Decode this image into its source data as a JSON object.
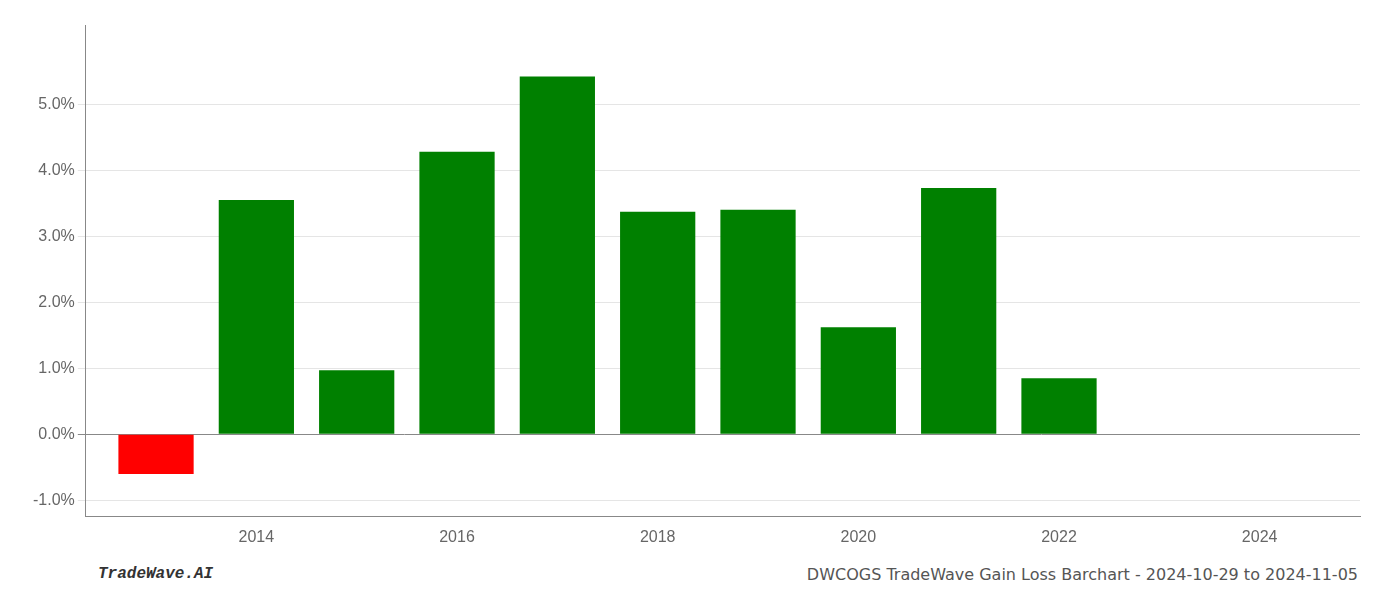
{
  "chart_data": {
    "type": "bar",
    "x": [
      2013,
      2014,
      2015,
      2016,
      2017,
      2018,
      2019,
      2020,
      2021,
      2022
    ],
    "values": [
      -0.6,
      3.55,
      0.97,
      4.28,
      5.42,
      3.37,
      3.4,
      1.62,
      3.73,
      0.85
    ],
    "colors": [
      "#ff0000",
      "#008000",
      "#008000",
      "#008000",
      "#008000",
      "#008000",
      "#008000",
      "#008000",
      "#008000",
      "#008000"
    ],
    "xlim": [
      2012.3,
      2025.0
    ],
    "xticks": [
      2014,
      2016,
      2018,
      2020,
      2022,
      2024
    ],
    "ylim": [
      -1.25,
      6.2
    ],
    "yticks": [
      {
        "value": -1.0,
        "label": "-1.0%"
      },
      {
        "value": 0.0,
        "label": "0.0%"
      },
      {
        "value": 1.0,
        "label": "1.0%"
      },
      {
        "value": 2.0,
        "label": "2.0%"
      },
      {
        "value": 3.0,
        "label": "3.0%"
      },
      {
        "value": 4.0,
        "label": "4.0%"
      },
      {
        "value": 5.0,
        "label": "5.0%"
      }
    ],
    "grid": true,
    "annotations": [
      "TradeWave.AI",
      "DWCOGS TradeWave Gain Loss Barchart - 2024-10-29 to 2024-11-05"
    ]
  }
}
